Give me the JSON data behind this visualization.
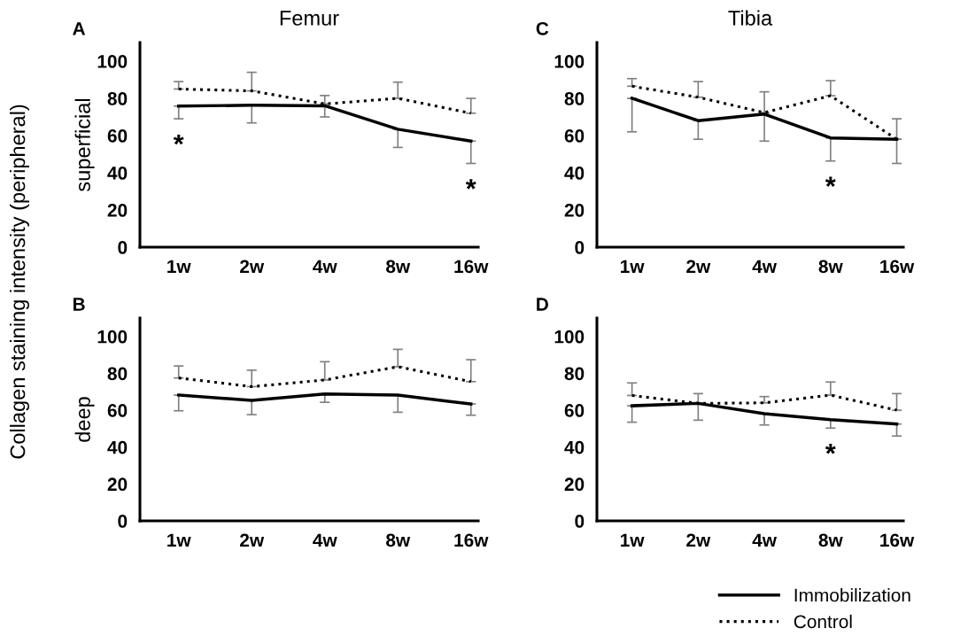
{
  "chart_data": [
    {
      "type": "line",
      "title": "Femur",
      "ylabel": "superficial",
      "categories": [
        "1w",
        "2w",
        "4w",
        "8w",
        "16w"
      ],
      "ylim": [
        0,
        110
      ],
      "yticks": [
        0,
        20,
        40,
        60,
        80,
        100
      ],
      "grid": false,
      "legend": false,
      "annotations": [
        "A",
        "Collagen staining intensity (peripheral)"
      ],
      "series": [
        {
          "color": "#000000",
          "line_style": "solid",
          "value_labels": [
            "*",
            null,
            null,
            null,
            "*"
          ],
          "values": [
            75.8,
            76.3,
            76,
            63.4,
            57
          ],
          "errors": [
            [
              69,
              75.8
            ],
            [
              66.8,
              76.3
            ],
            [
              70,
              76
            ],
            [
              53.6,
              63.4
            ],
            [
              45,
              57
            ]
          ]
        },
        {
          "color": "#000000",
          "line_style": "dotted",
          "values": [
            85,
            84,
            77,
            80,
            72
          ],
          "errors": [
            [
              85,
              89
            ],
            [
              84,
              94
            ],
            [
              77,
              81.5
            ],
            [
              80,
              88.7
            ],
            [
              72,
              80
            ]
          ]
        }
      ]
    },
    {
      "type": "line",
      "title": "Tibia",
      "categories": [
        "1w",
        "2w",
        "4w",
        "8w",
        "16w"
      ],
      "ylim": [
        0,
        110
      ],
      "yticks": [
        0,
        20,
        40,
        60,
        80,
        100
      ],
      "grid": false,
      "legend": false,
      "annotations": [
        "C"
      ],
      "series": [
        {
          "color": "#000000",
          "line_style": "solid",
          "value_labels": [
            null,
            null,
            null,
            "*",
            null
          ],
          "values": [
            80,
            68,
            71.5,
            58.7,
            58
          ],
          "errors": [
            [
              62,
              80
            ],
            [
              58,
              68
            ],
            [
              57,
              71.5
            ],
            [
              46.3,
              58.7
            ],
            [
              45,
              58
            ]
          ]
        },
        {
          "color": "#000000",
          "line_style": "dotted",
          "values": [
            86.5,
            80.6,
            72.3,
            81.4,
            58
          ],
          "errors": [
            [
              86.5,
              90.6
            ],
            [
              80.6,
              89
            ],
            [
              72.3,
              83.5
            ],
            [
              81.4,
              89.5
            ],
            [
              58,
              69
            ]
          ]
        }
      ]
    },
    {
      "type": "line",
      "ylabel": "deep",
      "categories": [
        "1w",
        "2w",
        "4w",
        "8w",
        "16w"
      ],
      "ylim": [
        0,
        110
      ],
      "yticks": [
        0,
        20,
        40,
        60,
        80,
        100
      ],
      "grid": false,
      "legend": false,
      "annotations": [
        "B"
      ],
      "series": [
        {
          "color": "#000000",
          "line_style": "solid",
          "values": [
            68.2,
            65.3,
            68.8,
            68.2,
            63.4
          ],
          "errors": [
            [
              59.7,
              68.2
            ],
            [
              57.6,
              65.3
            ],
            [
              64.3,
              68.8
            ],
            [
              58.9,
              68.2
            ],
            [
              57.3,
              63.4
            ]
          ]
        },
        {
          "color": "#000000",
          "line_style": "dotted",
          "values": [
            77.5,
            72.8,
            76.4,
            83.6,
            75.5
          ],
          "errors": [
            [
              77.5,
              84
            ],
            [
              72.8,
              81.7
            ],
            [
              76.4,
              86.3
            ],
            [
              83.6,
              93
            ],
            [
              75.5,
              87.4
            ]
          ]
        }
      ]
    },
    {
      "type": "line",
      "categories": [
        "1w",
        "2w",
        "4w",
        "8w",
        "16w"
      ],
      "ylim": [
        0,
        110
      ],
      "yticks": [
        0,
        20,
        40,
        60,
        80,
        100
      ],
      "grid": false,
      "legend": "bottom right",
      "annotations": [
        "D"
      ],
      "series": [
        {
          "name": "Immobilization",
          "color": "#000000",
          "line_style": "solid",
          "value_labels": [
            null,
            null,
            null,
            "*",
            null
          ],
          "values": [
            62.4,
            63.7,
            58.1,
            54.9,
            52.5
          ],
          "errors": [
            [
              53.5,
              62.4
            ],
            [
              54.6,
              63.7
            ],
            [
              52,
              58.1
            ],
            [
              50.3,
              54.9
            ],
            [
              46,
              52.5
            ]
          ]
        },
        {
          "name": "Control",
          "color": "#000000",
          "line_style": "dotted",
          "values": [
            68,
            63.7,
            64,
            68.2,
            60
          ],
          "errors": [
            [
              68,
              74.8
            ],
            [
              63.7,
              69
            ],
            [
              64,
              67.4
            ],
            [
              68.2,
              75.3
            ],
            [
              60,
              69
            ]
          ]
        }
      ]
    }
  ]
}
